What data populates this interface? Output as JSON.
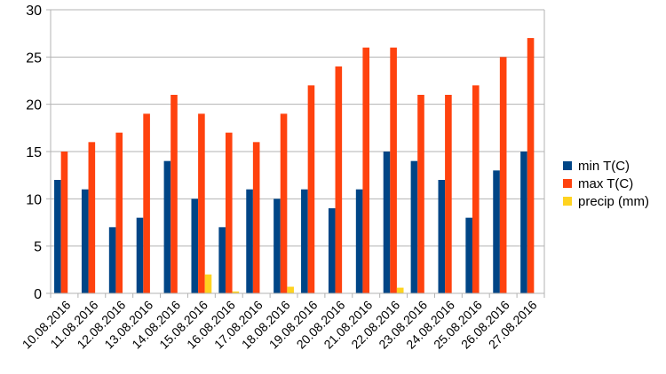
{
  "chart_data": {
    "type": "bar",
    "categories": [
      "10.08.2016",
      "11.08.2016",
      "12.08.2016",
      "13.08.2016",
      "14.08.2016",
      "15.08.2016",
      "16.08.2016",
      "17.08.2016",
      "18.08.2016",
      "19.08.2016",
      "20.08.2016",
      "21.08.2016",
      "22.08.2016",
      "23.08.2016",
      "24.08.2016",
      "25.08.2016",
      "26.08.2016",
      "27.08.2016"
    ],
    "series": [
      {
        "name": "min T(C)",
        "color": "#004586",
        "values": [
          12,
          11,
          7,
          8,
          14,
          10,
          7,
          11,
          10,
          11,
          9,
          11,
          15,
          14,
          12,
          8,
          13,
          15
        ]
      },
      {
        "name": "max T(C)",
        "color": "#ff420e",
        "values": [
          15,
          16,
          17,
          19,
          21,
          19,
          17,
          16,
          19,
          22,
          24,
          26,
          26,
          21,
          21,
          22,
          25,
          27
        ]
      },
      {
        "name": "precip (mm)",
        "color": "#ffd320",
        "values": [
          0,
          0,
          0,
          0,
          0,
          2,
          0.2,
          0,
          0.7,
          0,
          0,
          0,
          0.6,
          0,
          0,
          0,
          0,
          0
        ]
      }
    ],
    "ylim": [
      0,
      30
    ],
    "yticks": [
      0,
      5,
      10,
      15,
      20,
      25,
      30
    ],
    "grid": true,
    "legend": "right",
    "title": "",
    "xlabel": "",
    "ylabel": ""
  }
}
